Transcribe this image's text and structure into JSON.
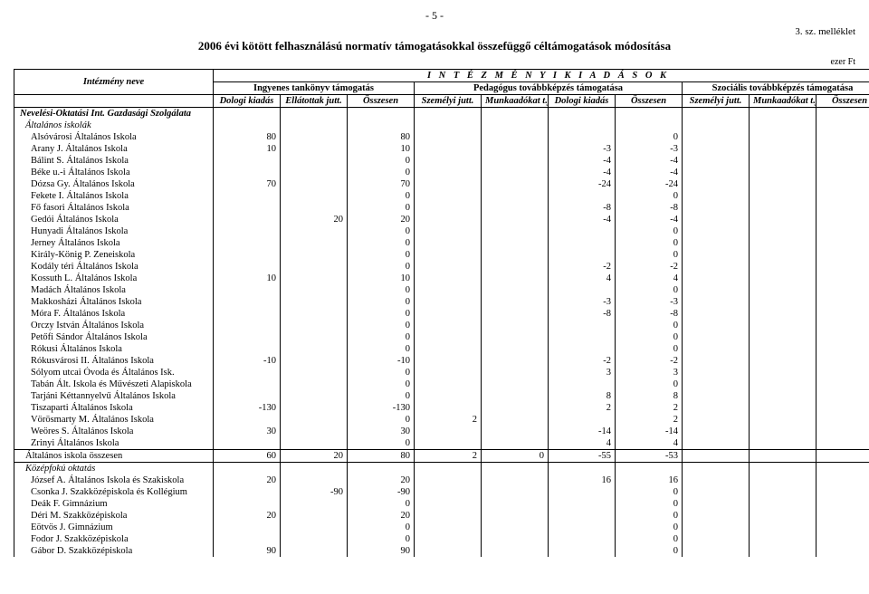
{
  "page_number": "- 5 -",
  "attachment": "3. sz. melléklet",
  "title": "2006 évi kötött felhasználású normatív támogatásokkal összefüggő céltámogatások módosítása",
  "unit": "ezer Ft",
  "header": {
    "top": "I N T É Z M É N Y I   K I A D Á S O K",
    "name": "Intézmény neve",
    "groups": [
      "Ingyenes tankönyv támogatás",
      "Pedagógus továbbképzés támogatása",
      "Szociális továbbképzés támogatása"
    ],
    "subs": [
      "Dologi kiadás",
      "Ellátottak jutt.",
      "Összesen",
      "Személyi jutt.",
      "Munkaadókat t.j.",
      "Dologi kiadás",
      "Összesen",
      "Személyi jutt.",
      "Munkaadókat t.j.",
      "Összesen"
    ]
  },
  "section1": "Nevelési-Oktatási Int. Gazdasági Szolgálata",
  "section2": "Általános iskolák",
  "rows": [
    {
      "n": "Alsóvárosi Általános Iskola",
      "c": [
        "80",
        "",
        "80",
        "",
        "",
        "",
        "0",
        "",
        "",
        ""
      ]
    },
    {
      "n": "Arany J. Általános Iskola",
      "c": [
        "10",
        "",
        "10",
        "",
        "",
        "-3",
        "-3",
        "",
        "",
        ""
      ]
    },
    {
      "n": "Bálint S. Általános Iskola",
      "c": [
        "",
        "",
        "0",
        "",
        "",
        "-4",
        "-4",
        "",
        "",
        ""
      ]
    },
    {
      "n": "Béke u.-i Általános Iskola",
      "c": [
        "",
        "",
        "0",
        "",
        "",
        "-4",
        "-4",
        "",
        "",
        ""
      ]
    },
    {
      "n": "Dózsa Gy. Általános Iskola",
      "c": [
        "70",
        "",
        "70",
        "",
        "",
        "-24",
        "-24",
        "",
        "",
        ""
      ]
    },
    {
      "n": "Fekete I. Általános Iskola",
      "c": [
        "",
        "",
        "0",
        "",
        "",
        "",
        "0",
        "",
        "",
        ""
      ]
    },
    {
      "n": "Fő fasori Általános Iskola",
      "c": [
        "",
        "",
        "0",
        "",
        "",
        "-8",
        "-8",
        "",
        "",
        ""
      ]
    },
    {
      "n": "Gedói Általános Iskola",
      "c": [
        "",
        "20",
        "20",
        "",
        "",
        "-4",
        "-4",
        "",
        "",
        ""
      ]
    },
    {
      "n": "Hunyadi Általános Iskola",
      "c": [
        "",
        "",
        "0",
        "",
        "",
        "",
        "0",
        "",
        "",
        ""
      ]
    },
    {
      "n": "Jerney Általános Iskola",
      "c": [
        "",
        "",
        "0",
        "",
        "",
        "",
        "0",
        "",
        "",
        ""
      ]
    },
    {
      "n": "Király-König P. Zeneiskola",
      "c": [
        "",
        "",
        "0",
        "",
        "",
        "",
        "0",
        "",
        "",
        ""
      ]
    },
    {
      "n": "Kodály téri Általános Iskola",
      "c": [
        "",
        "",
        "0",
        "",
        "",
        "-2",
        "-2",
        "",
        "",
        ""
      ]
    },
    {
      "n": "Kossuth L. Általános Iskola",
      "c": [
        "10",
        "",
        "10",
        "",
        "",
        "4",
        "4",
        "",
        "",
        ""
      ]
    },
    {
      "n": "Madách Általános Iskola",
      "c": [
        "",
        "",
        "0",
        "",
        "",
        "",
        "0",
        "",
        "",
        ""
      ]
    },
    {
      "n": "Makkosházi Általános Iskola",
      "c": [
        "",
        "",
        "0",
        "",
        "",
        "-3",
        "-3",
        "",
        "",
        ""
      ]
    },
    {
      "n": "Móra F. Általános Iskola",
      "c": [
        "",
        "",
        "0",
        "",
        "",
        "-8",
        "-8",
        "",
        "",
        ""
      ]
    },
    {
      "n": "Orczy István Általános Iskola",
      "c": [
        "",
        "",
        "0",
        "",
        "",
        "",
        "0",
        "",
        "",
        ""
      ]
    },
    {
      "n": "Petőfi Sándor Általános Iskola",
      "c": [
        "",
        "",
        "0",
        "",
        "",
        "",
        "0",
        "",
        "",
        ""
      ]
    },
    {
      "n": "Rókusi Általános Iskola",
      "c": [
        "",
        "",
        "0",
        "",
        "",
        "",
        "0",
        "",
        "",
        ""
      ]
    },
    {
      "n": "Rókusvárosi II. Általános Iskola",
      "c": [
        "-10",
        "",
        "-10",
        "",
        "",
        "-2",
        "-2",
        "",
        "",
        ""
      ]
    },
    {
      "n": "Sólyom utcai Óvoda és Általános Isk.",
      "c": [
        "",
        "",
        "0",
        "",
        "",
        "3",
        "3",
        "",
        "",
        ""
      ]
    },
    {
      "n": "Tabán Ált. Iskola és Művészeti Alapiskola",
      "c": [
        "",
        "",
        "0",
        "",
        "",
        "",
        "0",
        "",
        "",
        ""
      ]
    },
    {
      "n": "Tarjáni Kéttannyelvű Általános Iskola",
      "c": [
        "",
        "",
        "0",
        "",
        "",
        "8",
        "8",
        "",
        "",
        ""
      ]
    },
    {
      "n": "Tiszaparti Általános Iskola",
      "c": [
        "-130",
        "",
        "-130",
        "",
        "",
        "2",
        "2",
        "",
        "",
        ""
      ]
    },
    {
      "n": "Vörösmarty M. Általános Iskola",
      "c": [
        "",
        "",
        "0",
        "2",
        "",
        "",
        "2",
        "",
        "",
        ""
      ]
    },
    {
      "n": "Weöres S. Általános Iskola",
      "c": [
        "30",
        "",
        "30",
        "",
        "",
        "-14",
        "-14",
        "",
        "",
        ""
      ]
    },
    {
      "n": "Zrinyi Általános Iskola",
      "c": [
        "",
        "",
        "0",
        "",
        "",
        "4",
        "4",
        "",
        "",
        ""
      ]
    }
  ],
  "total": {
    "n": "Általános iskola összesen",
    "c": [
      "60",
      "20",
      "80",
      "2",
      "0",
      "-55",
      "-53",
      "",
      "",
      ""
    ]
  },
  "section3": "Középfokú oktatás",
  "rows2": [
    {
      "n": "József A. Általános Iskola és Szakiskola",
      "c": [
        "20",
        "",
        "20",
        "",
        "",
        "16",
        "16",
        "",
        "",
        ""
      ]
    },
    {
      "n": "Csonka J. Szakközépiskola és Kollégium",
      "c": [
        "",
        "-90",
        "-90",
        "",
        "",
        "",
        "0",
        "",
        "",
        ""
      ]
    },
    {
      "n": "Deák  F.  Gimnázium",
      "c": [
        "",
        "",
        "0",
        "",
        "",
        "",
        "0",
        "",
        "",
        ""
      ]
    },
    {
      "n": "Déri M. Szakközépiskola",
      "c": [
        "20",
        "",
        "20",
        "",
        "",
        "",
        "0",
        "",
        "",
        ""
      ]
    },
    {
      "n": "Eötvös J. Gimnázium",
      "c": [
        "",
        "",
        "0",
        "",
        "",
        "",
        "0",
        "",
        "",
        ""
      ]
    },
    {
      "n": "Fodor J. Szakközépiskola",
      "c": [
        "",
        "",
        "0",
        "",
        "",
        "",
        "0",
        "",
        "",
        ""
      ]
    },
    {
      "n": "Gábor D. Szakközépiskola",
      "c": [
        "90",
        "",
        "90",
        "",
        "",
        "",
        "0",
        "",
        "",
        ""
      ]
    }
  ]
}
